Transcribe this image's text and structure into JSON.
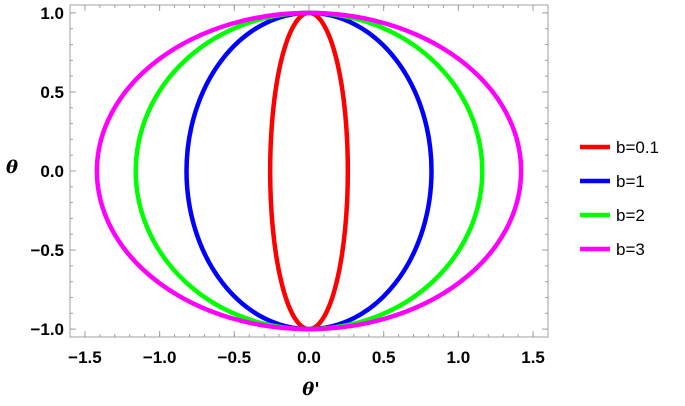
{
  "chart_data": {
    "type": "line",
    "title": "",
    "xlabel": "θ'",
    "ylabel": "θ",
    "xlim": [
      -1.6,
      1.6
    ],
    "ylim": [
      -1.05,
      1.05
    ],
    "xticks": [
      -1.5,
      -1.0,
      -0.5,
      0.0,
      0.5,
      1.0,
      1.5
    ],
    "xtick_labels": [
      "−1.5",
      "−1.0",
      "−0.5",
      "0.0",
      "0.5",
      "1.0",
      "1.5"
    ],
    "yticks": [
      -1.0,
      -0.5,
      0.0,
      0.5,
      1.0
    ],
    "ytick_labels": [
      "−1.0",
      "−0.5",
      "0.0",
      "0.5",
      "1.0"
    ],
    "grid": false,
    "legend_position": "right",
    "series": [
      {
        "name": "b=0.1",
        "color": "#ff0000",
        "curve": "ellipse",
        "x_semi_axis": 0.26,
        "y_semi_axis": 1.0
      },
      {
        "name": "b=1",
        "color": "#0000ff",
        "curve": "ellipse",
        "x_semi_axis": 0.82,
        "y_semi_axis": 1.0
      },
      {
        "name": "b=2",
        "color": "#00ff00",
        "curve": "ellipse",
        "x_semi_axis": 1.16,
        "y_semi_axis": 1.0
      },
      {
        "name": "b=3",
        "color": "#ff00ff",
        "curve": "ellipse",
        "x_semi_axis": 1.42,
        "y_semi_axis": 1.0
      }
    ]
  }
}
